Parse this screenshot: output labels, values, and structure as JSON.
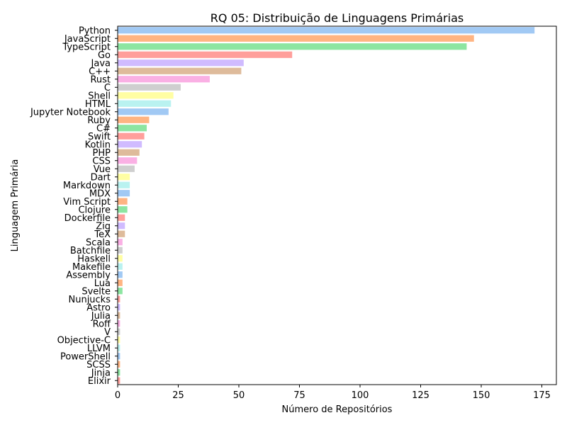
{
  "chart_data": {
    "type": "bar",
    "orientation": "horizontal",
    "title": "RQ 05: Distribuição de Linguagens Primárias",
    "xlabel": "Número de Repositórios",
    "ylabel": "Linguagem Primária",
    "xlim": [
      0,
      181
    ],
    "xticks": [
      0,
      25,
      50,
      75,
      100,
      125,
      150,
      175
    ],
    "grid": false,
    "categories": [
      "Python",
      "JavaScript",
      "TypeScript",
      "Go",
      "Java",
      "C++",
      "Rust",
      "C",
      "Shell",
      "HTML",
      "Jupyter Notebook",
      "Ruby",
      "C#",
      "Swift",
      "Kotlin",
      "PHP",
      "CSS",
      "Vue",
      "Dart",
      "Markdown",
      "MDX",
      "Vim Script",
      "Clojure",
      "Dockerfile",
      "Zig",
      "TeX",
      "Scala",
      "Batchfile",
      "Haskell",
      "Makefile",
      "Assembly",
      "Lua",
      "Svelte",
      "Nunjucks",
      "Astro",
      "Julia",
      "Roff",
      "V",
      "Objective-C",
      "LLVM",
      "PowerShell",
      "SCSS",
      "Jinja",
      "Elixir"
    ],
    "values": [
      172,
      147,
      144,
      72,
      52,
      51,
      38,
      26,
      23,
      22,
      21,
      13,
      12,
      11,
      10,
      9,
      8,
      7,
      5,
      5,
      5,
      4,
      4,
      3,
      3,
      3,
      2,
      2,
      2,
      2,
      2,
      2,
      2,
      1,
      1,
      1,
      1,
      1,
      1,
      1,
      1,
      1,
      1,
      1
    ],
    "palette": [
      "#a1c9f4",
      "#ffb482",
      "#8de5a1",
      "#ff9f9b",
      "#d0bbff",
      "#debb9b",
      "#fab0e4",
      "#cfcfcf",
      "#fffea3",
      "#b9f2f0"
    ]
  }
}
